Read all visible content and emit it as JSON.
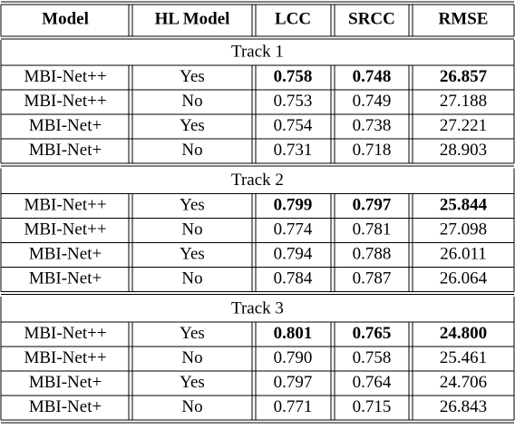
{
  "table": {
    "header": [
      "Model",
      "HL Model",
      "LCC",
      "SRCC",
      "RMSE"
    ],
    "tracks": [
      {
        "title": "Track 1",
        "bold_row": 0,
        "rows": [
          [
            "MBI-Net++",
            "Yes",
            "0.758",
            "0.748",
            "26.857"
          ],
          [
            "MBI-Net++",
            "No",
            "0.753",
            "0.749",
            "27.188"
          ],
          [
            "MBI-Net+",
            "Yes",
            "0.754",
            "0.738",
            "27.221"
          ],
          [
            "MBI-Net+",
            "No",
            "0.731",
            "0.718",
            "28.903"
          ]
        ]
      },
      {
        "title": "Track 2",
        "bold_row": 0,
        "rows": [
          [
            "MBI-Net++",
            "Yes",
            "0.799",
            "0.797",
            "25.844"
          ],
          [
            "MBI-Net++",
            "No",
            "0.774",
            "0.781",
            "27.098"
          ],
          [
            "MBI-Net+",
            "Yes",
            "0.794",
            "0.788",
            "26.011"
          ],
          [
            "MBI-Net+",
            "No",
            "0.784",
            "0.787",
            "26.064"
          ]
        ]
      },
      {
        "title": "Track 3",
        "bold_row": 0,
        "rows": [
          [
            "MBI-Net++",
            "Yes",
            "0.801",
            "0.765",
            "24.800"
          ],
          [
            "MBI-Net++",
            "No",
            "0.790",
            "0.758",
            "25.461"
          ],
          [
            "MBI-Net+",
            "Yes",
            "0.797",
            "0.764",
            "24.706"
          ],
          [
            "MBI-Net+",
            "No",
            "0.771",
            "0.715",
            "26.843"
          ]
        ]
      }
    ]
  }
}
